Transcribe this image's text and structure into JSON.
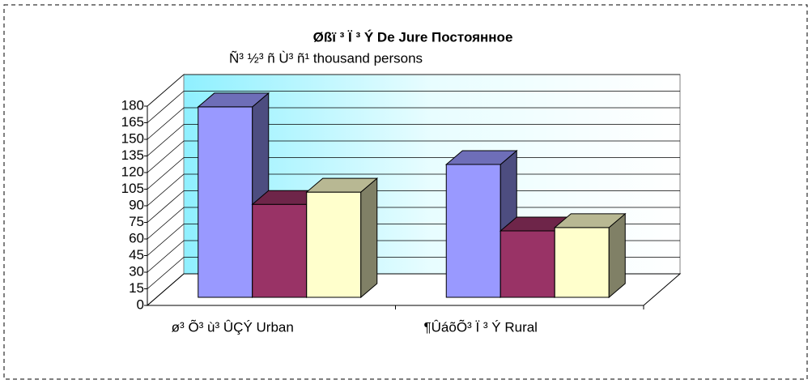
{
  "chart_data": {
    "type": "bar3d",
    "title": "Øßï ³ Ï ³ Ý De Jure  Постоянное",
    "subtitle": "Ñ³ ½³ ñ Ù³ ñ¹ thousand persons",
    "categories": [
      "ø³ Õ³ ù³ ÛÇÝ Urban",
      "¶ÛáõÕ³ Ï ³ Ý Rural"
    ],
    "series": [
      {
        "color": "#9999ff",
        "values": [
          172,
          120
        ]
      },
      {
        "color": "#993366",
        "values": [
          84,
          60
        ]
      },
      {
        "color": "#ffffcc",
        "values": [
          95,
          63
        ]
      }
    ],
    "ylim": [
      0,
      180
    ],
    "yticks": [
      0,
      15,
      30,
      45,
      60,
      75,
      90,
      105,
      120,
      135,
      150,
      165,
      180
    ],
    "grid": true
  }
}
